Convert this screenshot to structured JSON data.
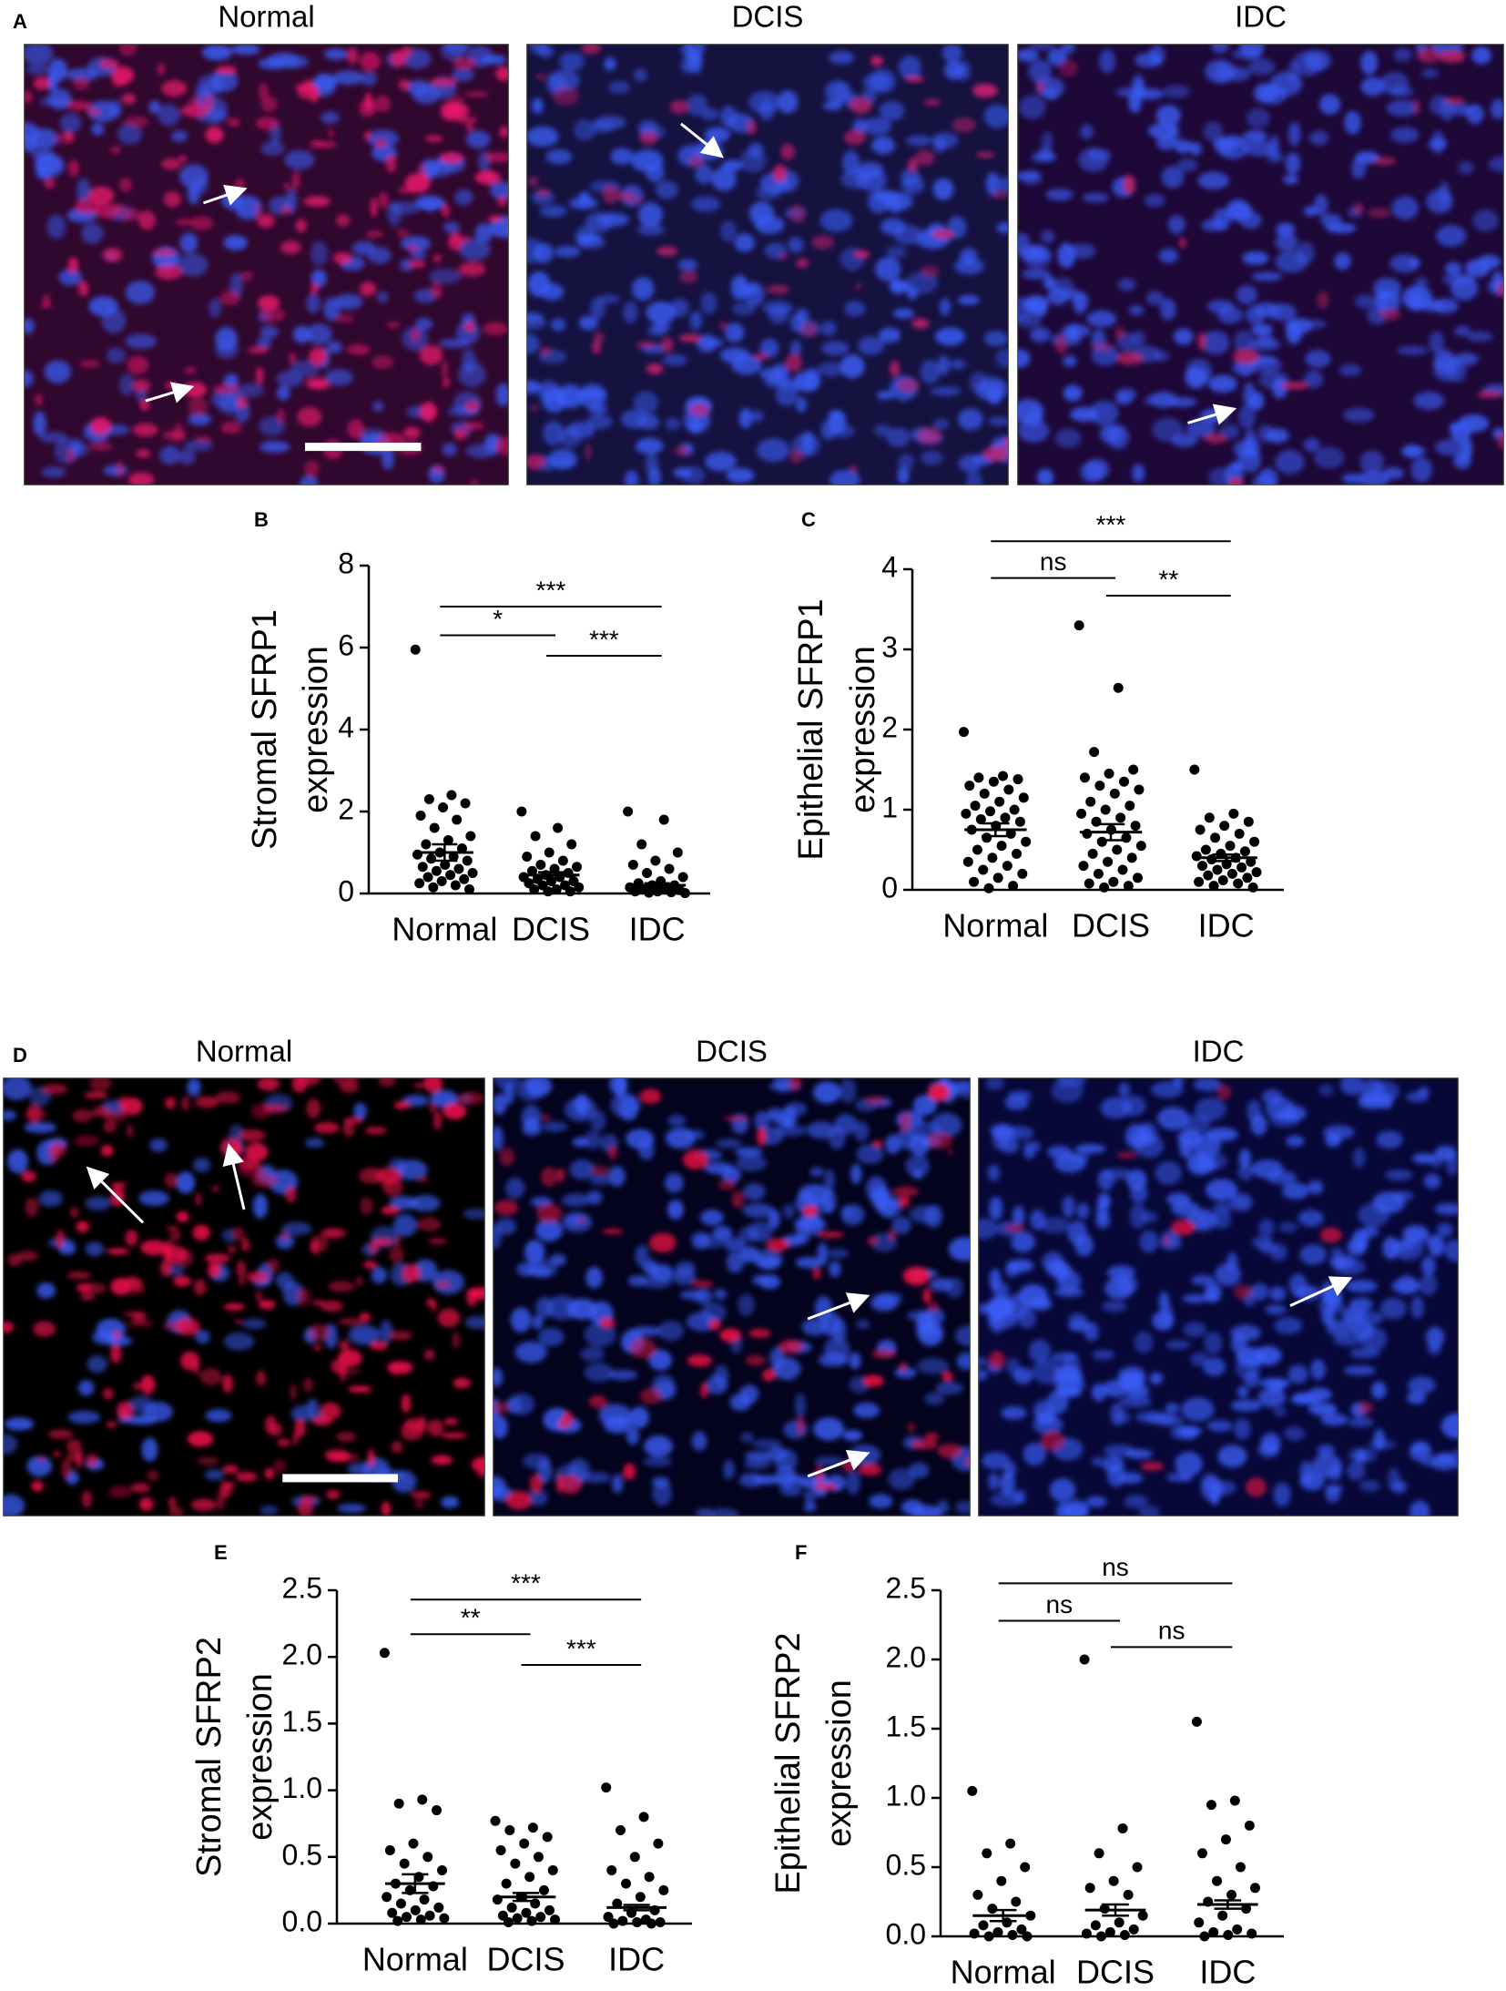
{
  "figure_rows": [
    {
      "panel": "A",
      "titles": [
        "Normal",
        "DCIS",
        "IDC"
      ]
    },
    {
      "panel": "D",
      "titles": [
        "Normal",
        "DCIS",
        "IDC"
      ]
    }
  ],
  "chart_data": [
    {
      "type": "strip",
      "panel": "B",
      "ylabel": [
        "Stromal SFRP1",
        "expression"
      ],
      "categories": [
        "Normal",
        "DCIS",
        "IDC"
      ],
      "ylim": [
        0,
        8
      ],
      "yticks": [
        0,
        2,
        4,
        6,
        8
      ],
      "color": "#000000",
      "series": [
        {
          "values": [
            5.95,
            2.4,
            2.3,
            2.2,
            2.1,
            1.9,
            1.8,
            1.6,
            1.4,
            1.3,
            1.2,
            1.1,
            1.0,
            0.95,
            0.9,
            0.85,
            0.8,
            0.7,
            0.65,
            0.6,
            0.55,
            0.5,
            0.45,
            0.4,
            0.35,
            0.3,
            0.25,
            0.2,
            0.15,
            0.1
          ],
          "mean": 1.0,
          "sem": 0.2
        },
        {
          "values": [
            2.0,
            1.6,
            1.4,
            1.2,
            1.0,
            0.9,
            0.8,
            0.7,
            0.65,
            0.6,
            0.55,
            0.5,
            0.45,
            0.4,
            0.4,
            0.35,
            0.3,
            0.3,
            0.25,
            0.2,
            0.2,
            0.15,
            0.1,
            0.1,
            0.05,
            0.05
          ],
          "mean": 0.45,
          "sem": 0.07
        },
        {
          "values": [
            2.0,
            1.8,
            1.2,
            1.0,
            0.8,
            0.7,
            0.6,
            0.5,
            0.4,
            0.3,
            0.25,
            0.2,
            0.2,
            0.15,
            0.1,
            0.1,
            0.08,
            0.05,
            0.05,
            0.03,
            0.02,
            0.01
          ],
          "mean": 0.2,
          "sem": 0.05
        }
      ],
      "brackets": [
        {
          "from": 0,
          "to": 2,
          "y": 7.0,
          "label": "***"
        },
        {
          "from": 0,
          "to": 1,
          "y": 6.3,
          "label": "*"
        },
        {
          "from": 1,
          "to": 2,
          "y": 5.8,
          "label": "***"
        }
      ]
    },
    {
      "type": "strip",
      "panel": "C",
      "ylabel": [
        "Epithelial SFRP1",
        "expression"
      ],
      "categories": [
        "Normal",
        "DCIS",
        "IDC"
      ],
      "ylim": [
        0,
        4
      ],
      "yticks": [
        0,
        1,
        2,
        3,
        4
      ],
      "color": "#000000",
      "series": [
        {
          "values": [
            1.97,
            1.42,
            1.4,
            1.38,
            1.35,
            1.3,
            1.25,
            1.2,
            1.15,
            1.1,
            1.05,
            1.0,
            0.98,
            0.95,
            0.9,
            0.88,
            0.85,
            0.8,
            0.75,
            0.7,
            0.65,
            0.6,
            0.55,
            0.5,
            0.45,
            0.4,
            0.35,
            0.3,
            0.25,
            0.2,
            0.15,
            0.1,
            0.05,
            0.02
          ],
          "mean": 0.75,
          "sem": 0.08
        },
        {
          "values": [
            3.3,
            2.52,
            1.72,
            1.5,
            1.45,
            1.4,
            1.35,
            1.3,
            1.25,
            1.2,
            1.1,
            1.05,
            1.0,
            0.95,
            0.9,
            0.85,
            0.8,
            0.75,
            0.7,
            0.65,
            0.6,
            0.55,
            0.5,
            0.45,
            0.4,
            0.35,
            0.3,
            0.25,
            0.2,
            0.15,
            0.1,
            0.08,
            0.05,
            0.03
          ],
          "mean": 0.72,
          "sem": 0.1
        },
        {
          "values": [
            1.5,
            0.95,
            0.9,
            0.85,
            0.8,
            0.75,
            0.7,
            0.65,
            0.6,
            0.55,
            0.5,
            0.48,
            0.45,
            0.42,
            0.4,
            0.38,
            0.35,
            0.32,
            0.3,
            0.28,
            0.25,
            0.22,
            0.2,
            0.18,
            0.15,
            0.12,
            0.1,
            0.08,
            0.05,
            0.03
          ],
          "mean": 0.4,
          "sem": 0.04
        }
      ],
      "brackets": [
        {
          "from": 0,
          "to": 2,
          "y": 4.35,
          "label": "***"
        },
        {
          "from": 0,
          "to": 1,
          "y": 3.89,
          "label": "ns"
        },
        {
          "from": 1,
          "to": 2,
          "y": 3.67,
          "label": "**"
        }
      ]
    },
    {
      "type": "strip",
      "panel": "E",
      "ylabel": [
        "Stromal SFRP2",
        "expression"
      ],
      "categories": [
        "Normal",
        "DCIS",
        "IDC"
      ],
      "ylim": [
        0,
        2.5
      ],
      "yticks": [
        {
          "value": 0,
          "label": "0.0"
        },
        0.5,
        {
          "value": 1,
          "label": "1.0"
        },
        1.5,
        {
          "value": 2,
          "label": "2.0"
        },
        2.5
      ],
      "color": "#000000",
      "series": [
        {
          "values": [
            2.03,
            0.93,
            0.9,
            0.85,
            0.6,
            0.55,
            0.5,
            0.45,
            0.4,
            0.35,
            0.3,
            0.28,
            0.25,
            0.2,
            0.18,
            0.15,
            0.12,
            0.1,
            0.08,
            0.06,
            0.05,
            0.04,
            0.03,
            0.02
          ],
          "mean": 0.3,
          "sem": 0.07
        },
        {
          "values": [
            0.77,
            0.72,
            0.7,
            0.65,
            0.6,
            0.55,
            0.5,
            0.45,
            0.4,
            0.35,
            0.3,
            0.25,
            0.2,
            0.18,
            0.15,
            0.12,
            0.1,
            0.08,
            0.06,
            0.05,
            0.04,
            0.03,
            0.02,
            0.01
          ],
          "mean": 0.2,
          "sem": 0.03
        },
        {
          "values": [
            1.02,
            0.8,
            0.7,
            0.6,
            0.5,
            0.4,
            0.35,
            0.3,
            0.25,
            0.2,
            0.15,
            0.1,
            0.08,
            0.05,
            0.03,
            0.02,
            0.01,
            0.01,
            0,
            0
          ],
          "mean": 0.12,
          "sem": 0.02
        }
      ],
      "brackets": [
        {
          "from": 0,
          "to": 2,
          "y": 2.43,
          "label": "***"
        },
        {
          "from": 0,
          "to": 1,
          "y": 2.17,
          "label": "**"
        },
        {
          "from": 1,
          "to": 2,
          "y": 1.94,
          "label": "***"
        }
      ]
    },
    {
      "type": "strip",
      "panel": "F",
      "ylabel": [
        "Epithelial SFRP2",
        "expression"
      ],
      "categories": [
        "Normal",
        "DCIS",
        "IDC"
      ],
      "ylim": [
        0,
        2.5
      ],
      "yticks": [
        {
          "value": 0,
          "label": "0.0"
        },
        0.5,
        {
          "value": 1,
          "label": "1.0"
        },
        1.5,
        {
          "value": 2,
          "label": "2.0"
        },
        2.5
      ],
      "color": "#000000",
      "series": [
        {
          "values": [
            1.05,
            0.67,
            0.6,
            0.5,
            0.4,
            0.3,
            0.25,
            0.2,
            0.15,
            0.1,
            0.08,
            0.05,
            0.03,
            0.02,
            0.01,
            0,
            0
          ],
          "mean": 0.15,
          "sem": 0.04
        },
        {
          "values": [
            2.0,
            0.78,
            0.6,
            0.5,
            0.4,
            0.35,
            0.3,
            0.2,
            0.15,
            0.1,
            0.08,
            0.05,
            0.03,
            0.02,
            0.01,
            0
          ],
          "mean": 0.19,
          "sem": 0.04
        },
        {
          "values": [
            1.55,
            0.98,
            0.95,
            0.8,
            0.7,
            0.6,
            0.5,
            0.4,
            0.35,
            0.3,
            0.25,
            0.2,
            0.15,
            0.1,
            0.05,
            0.03,
            0.02,
            0.01,
            0
          ],
          "mean": 0.23,
          "sem": 0.03
        }
      ],
      "brackets": [
        {
          "from": 0,
          "to": 2,
          "y": 2.55,
          "label": "ns"
        },
        {
          "from": 0,
          "to": 1,
          "y": 2.28,
          "label": "ns"
        },
        {
          "from": 1,
          "to": 2,
          "y": 2.09,
          "label": "ns"
        }
      ]
    }
  ]
}
